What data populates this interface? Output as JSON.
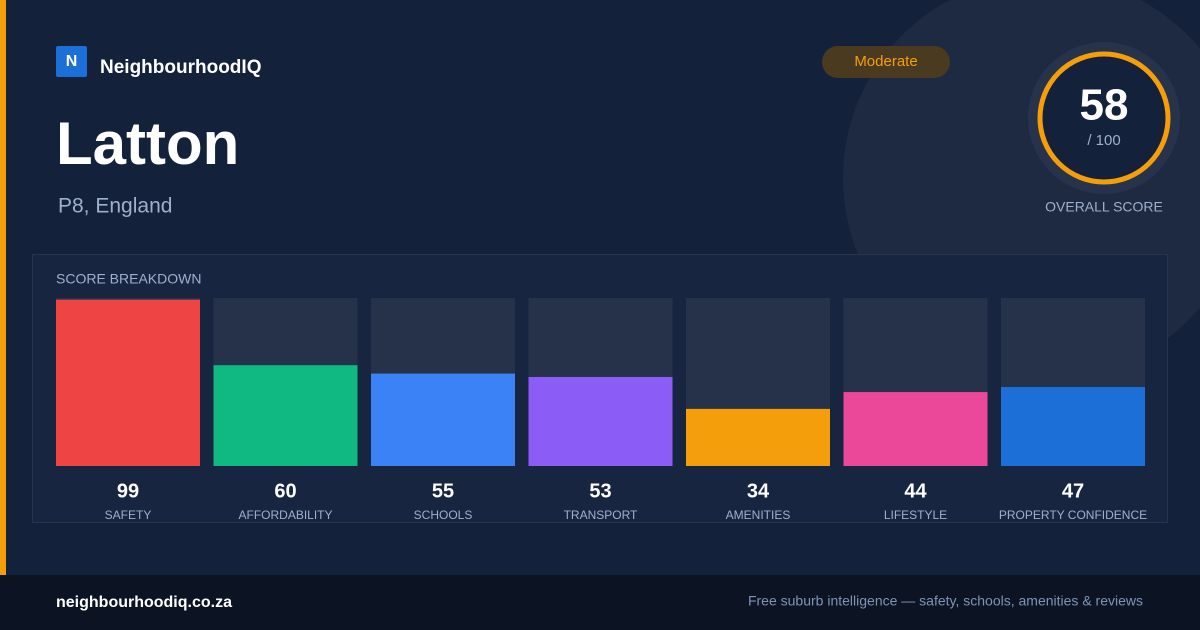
{
  "header": {
    "logo_letter": "N",
    "brand": "NeighbourhoodIQ",
    "badge": "Moderate",
    "title": "Latton",
    "subtitle": "P8, England"
  },
  "score": {
    "value": 58,
    "max_label": "/ 100",
    "label": "OVERALL SCORE"
  },
  "chart_data": {
    "type": "bar",
    "title": "SCORE BREAKDOWN",
    "categories": [
      "SAFETY",
      "AFFORDABILITY",
      "SCHOOLS",
      "TRANSPORT",
      "AMENITIES",
      "LIFESTYLE",
      "PROPERTY CONFIDENCE"
    ],
    "values": [
      99,
      60,
      55,
      53,
      34,
      44,
      47
    ],
    "colors": [
      "#ef4444",
      "#10b981",
      "#3b82f6",
      "#8b5cf6",
      "#f59e0b",
      "#ec4899",
      "#1d6fd8"
    ],
    "ylim": [
      0,
      100
    ]
  },
  "footer": {
    "site": "neighbourhoodiq.co.za",
    "tagline": "Free suburb intelligence — safety, schools, amenities & reviews"
  }
}
